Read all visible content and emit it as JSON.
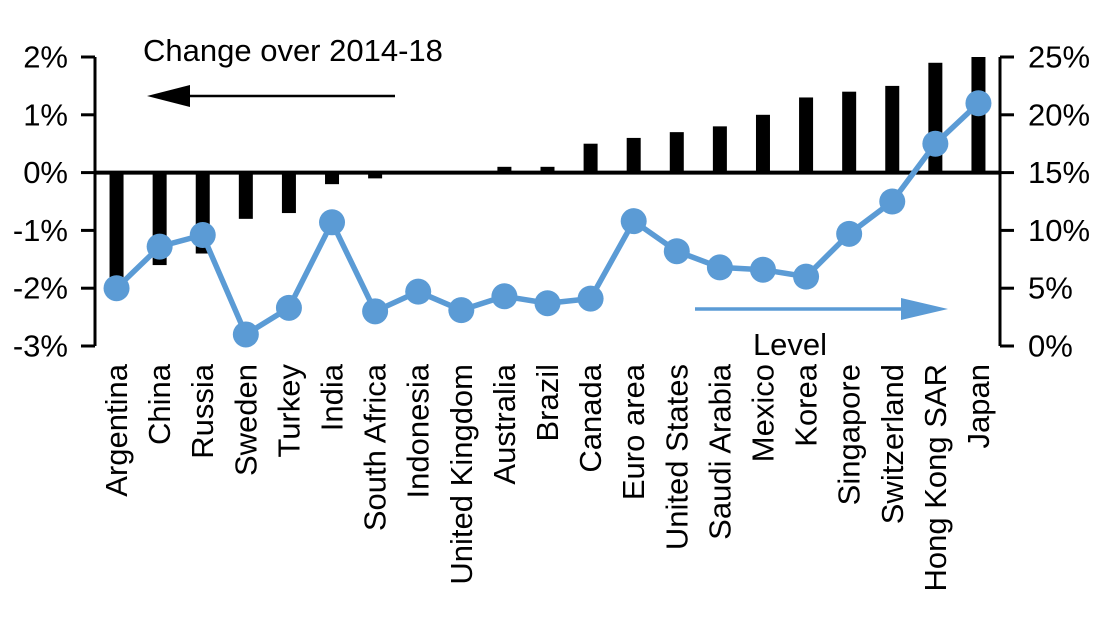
{
  "chart_data": {
    "type": "bar",
    "subtype": "combo-bar-line-dual-axis",
    "categories": [
      "Argentina",
      "China",
      "Russia",
      "Sweden",
      "Turkey",
      "India",
      "South Africa",
      "Indonesia",
      "United Kingdom",
      "Australia",
      "Brazil",
      "Canada",
      "Euro area",
      "United States",
      "Saudi Arabia",
      "Mexico",
      "Korea",
      "Singapore",
      "Switzerland",
      "Hong Kong SAR",
      "Japan"
    ],
    "series": [
      {
        "name": "Change over 2014-18",
        "type": "bar",
        "axis": "left",
        "color": "#000000",
        "values": [
          -1.9,
          -1.6,
          -1.4,
          -0.8,
          -0.7,
          -0.2,
          -0.1,
          0,
          0,
          0.1,
          0.1,
          0.5,
          0.6,
          0.7,
          0.8,
          1.0,
          1.3,
          1.4,
          1.5,
          1.9,
          2.0
        ]
      },
      {
        "name": "Level",
        "type": "line",
        "axis": "right",
        "color": "#5B9BD5",
        "values": [
          5.0,
          8.6,
          9.6,
          1.0,
          3.3,
          10.7,
          3.0,
          4.7,
          3.1,
          4.3,
          3.7,
          4.1,
          10.8,
          8.2,
          6.8,
          6.6,
          6.0,
          9.7,
          12.5,
          17.5,
          21.0
        ]
      }
    ],
    "left_axis": {
      "ticks": [
        "2%",
        "1%",
        "0%",
        "-1%",
        "-2%",
        "-3%"
      ],
      "min": -3,
      "max": 2
    },
    "right_axis": {
      "ticks": [
        "25%",
        "20%",
        "15%",
        "10%",
        "5%",
        "0%"
      ],
      "min": 0,
      "max": 25
    },
    "annotations": [
      {
        "text": "Change over 2014-18",
        "arrow": "left",
        "arrow_color": "#000000"
      },
      {
        "text": "Level",
        "arrow": "right",
        "arrow_color": "#5B9BD5"
      }
    ],
    "grid": "off",
    "legend": "none",
    "title": ""
  }
}
